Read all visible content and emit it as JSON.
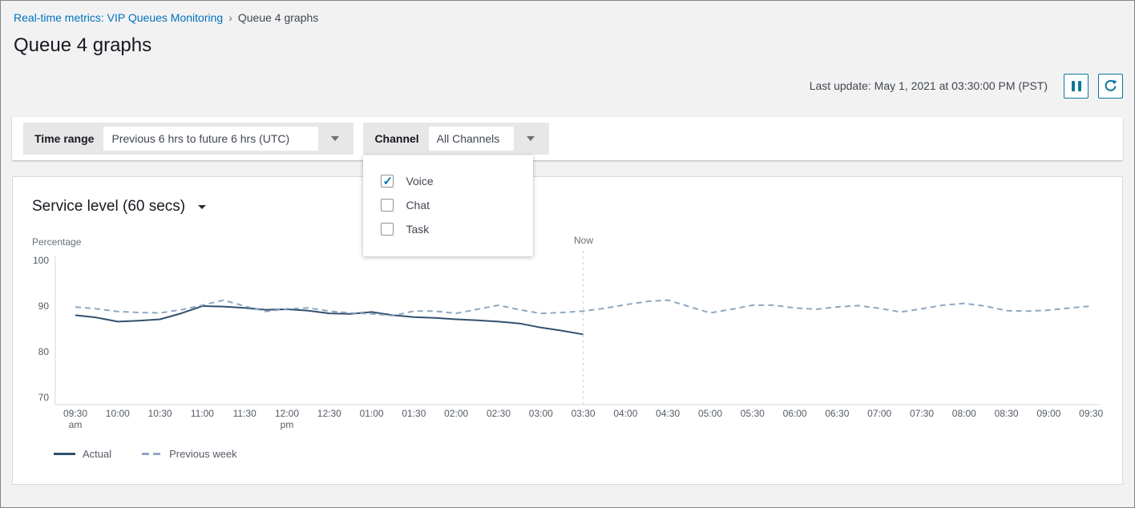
{
  "breadcrumb": {
    "link": "Real-time metrics: VIP Queues Monitoring",
    "separator": "›",
    "current": "Queue 4 graphs"
  },
  "page": {
    "title": "Queue 4 graphs",
    "last_update": "Last update: May 1, 2021 at 03:30:00 PM (PST)"
  },
  "toolbar": {
    "pause_icon": "pause",
    "refresh_icon": "refresh"
  },
  "filters": {
    "time_range": {
      "label": "Time range",
      "value": "Previous 6 hrs to future 6 hrs (UTC)"
    },
    "channel": {
      "label": "Channel",
      "value": "All Channels",
      "options": [
        {
          "label": "Voice",
          "checked": true
        },
        {
          "label": "Chat",
          "checked": false
        },
        {
          "label": "Task",
          "checked": false
        }
      ]
    }
  },
  "chart": {
    "title": "Service level (60 secs)",
    "y_axis_label": "Percentage",
    "now_label": "Now",
    "legend": [
      {
        "label": "Actual",
        "style": "solid"
      },
      {
        "label": "Previous week",
        "style": "dashed"
      }
    ]
  },
  "chart_data": {
    "type": "line",
    "title": "Service level (60 secs)",
    "ylabel": "Percentage",
    "ylim": [
      70,
      100
    ],
    "y_ticks": [
      100,
      90,
      80,
      70
    ],
    "grid": false,
    "legend_position": "bottom-left",
    "interval_minutes": 15,
    "now_index": 24,
    "x_tick_labels": [
      [
        "09:30",
        "am"
      ],
      [
        "10:00"
      ],
      [
        "10:30"
      ],
      [
        "11:00"
      ],
      [
        "11:30"
      ],
      [
        "12:00",
        "pm"
      ],
      [
        "12:30"
      ],
      [
        "01:00"
      ],
      [
        "01:30"
      ],
      [
        "02:00"
      ],
      [
        "02:30"
      ],
      [
        "03:00"
      ],
      [
        "03:30"
      ],
      [
        "04:00"
      ],
      [
        "04:30"
      ],
      [
        "05:00"
      ],
      [
        "05:30"
      ],
      [
        "06:00"
      ],
      [
        "06:30"
      ],
      [
        "07:00"
      ],
      [
        "07:30"
      ],
      [
        "08:00"
      ],
      [
        "08:30"
      ],
      [
        "09:00"
      ],
      [
        "09:30"
      ]
    ],
    "series": [
      {
        "name": "Actual",
        "style": "solid",
        "color": "#31506f",
        "values": [
          88.0,
          87.5,
          86.6,
          86.8,
          87.1,
          88.4,
          90.0,
          89.9,
          89.6,
          89.2,
          89.3,
          89.0,
          88.4,
          88.3,
          88.7,
          88.0,
          87.6,
          87.4,
          87.1,
          86.9,
          86.6,
          86.2,
          85.3,
          84.6,
          83.8
        ]
      },
      {
        "name": "Previous week",
        "style": "dashed",
        "color": "#8fa7c2",
        "values": [
          89.8,
          89.4,
          88.8,
          88.6,
          88.5,
          89.2,
          90.2,
          91.3,
          90.0,
          88.8,
          89.4,
          89.6,
          88.9,
          88.5,
          88.3,
          87.9,
          88.9,
          88.9,
          88.4,
          89.3,
          90.2,
          89.2,
          88.4,
          88.6,
          88.9,
          89.5,
          90.3,
          91.0,
          91.3,
          89.9,
          88.5,
          89.3,
          90.2,
          90.2,
          89.6,
          89.3,
          89.8,
          90.1,
          89.5,
          88.7,
          89.4,
          90.2,
          90.6,
          90.0,
          89.0,
          88.9,
          89.1,
          89.6,
          90.0
        ]
      }
    ]
  },
  "colors": {
    "accent_blue": "#0073bb",
    "button_teal": "#0e7898",
    "actual_line": "#31506f",
    "previous_week_line": "#8fa7c2",
    "now_line": "#c9ced3",
    "axis_line": "#d3d9d9",
    "tick_text": "#545b64"
  }
}
